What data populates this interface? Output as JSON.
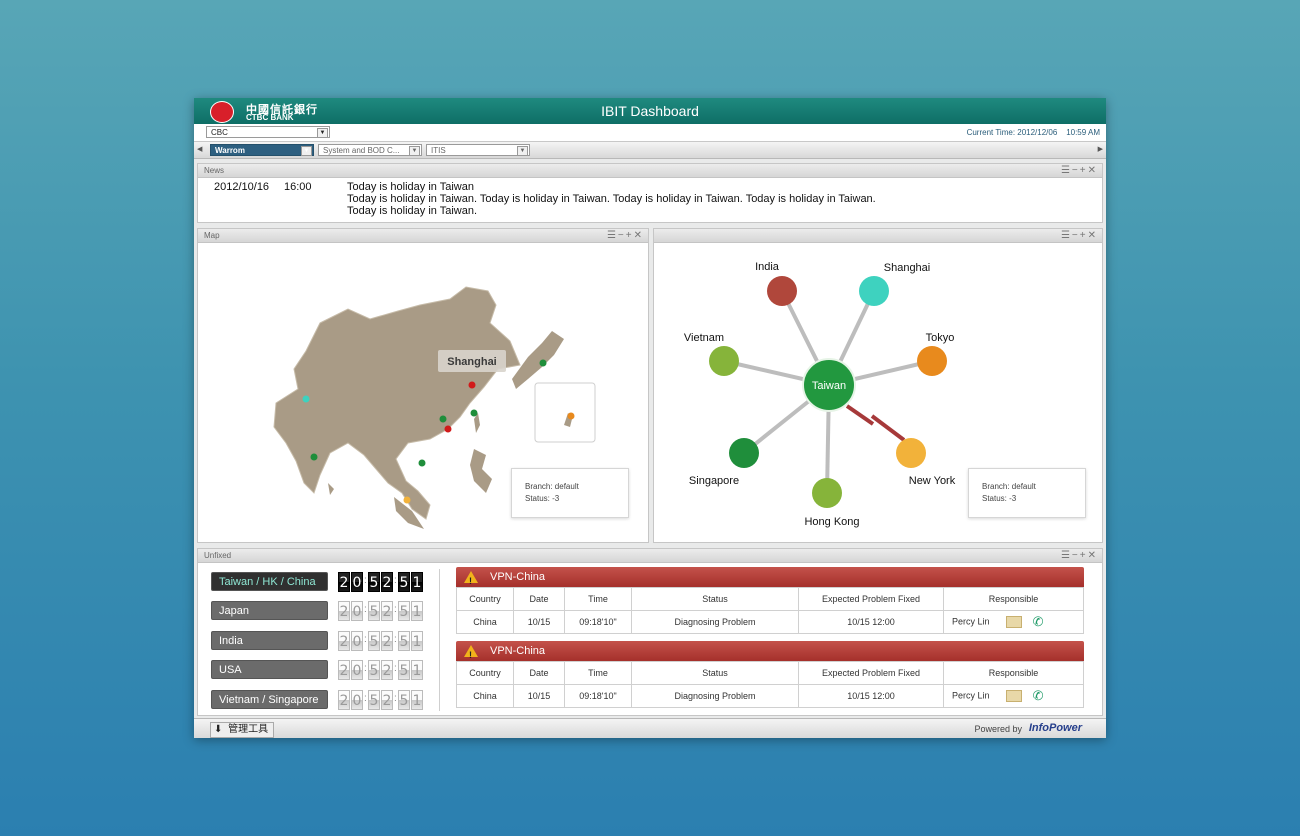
{
  "app": {
    "title": "IBIT Dashboard",
    "logo_cn": "中國信託銀行",
    "logo_en": "CTBC BANK"
  },
  "toolbar": {
    "bank_select": "CBC",
    "current_time_label": "Current Time: 2012/12/06",
    "current_time_value": "10:59 AM",
    "tabs": [
      "Warrom",
      "System and BOD C...",
      "ITIS"
    ]
  },
  "news": {
    "title": "News",
    "date": "2012/10/16",
    "time": "16:00",
    "lines": [
      "Today is holiday in Taiwan",
      "Today is holiday in Taiwan. Today is holiday in Taiwan. Today is holiday in Taiwan. Today is holiday in Taiwan.",
      "Today is holiday in Taiwan."
    ]
  },
  "map": {
    "title": "Map",
    "tooltip": "Shanghai",
    "branch": "Branch: default",
    "status": "Status: -3"
  },
  "network": {
    "center": "Taiwan",
    "nodes": [
      {
        "label": "India",
        "color": "#b0473b"
      },
      {
        "label": "Shanghai",
        "color": "#3ed2bf"
      },
      {
        "label": "Tokyo",
        "color": "#e88a1d"
      },
      {
        "label": "New York",
        "color": "#f2b23a"
      },
      {
        "label": "Hong Kong",
        "color": "#86b43a"
      },
      {
        "label": "Singapore",
        "color": "#1f8e3b"
      },
      {
        "label": "Vietnam",
        "color": "#86b43a"
      }
    ],
    "branch": "Branch: default",
    "status": "Status: -3"
  },
  "unfixed": {
    "title": "Unfixed",
    "clocks": [
      {
        "region": "Taiwan / HK / China",
        "time": [
          "2",
          "0",
          "5",
          "2",
          "5",
          "1"
        ]
      },
      {
        "region": "Japan",
        "time": [
          "2",
          "0",
          "5",
          "2",
          "5",
          "1"
        ]
      },
      {
        "region": "India",
        "time": [
          "2",
          "0",
          "5",
          "2",
          "5",
          "1"
        ]
      },
      {
        "region": "USA",
        "time": [
          "2",
          "0",
          "5",
          "2",
          "5",
          "1"
        ]
      },
      {
        "region": "Vietnam / Singapore",
        "time": [
          "2",
          "0",
          "5",
          "2",
          "5",
          "1"
        ]
      }
    ],
    "headers": [
      "Country",
      "Date",
      "Time",
      "Status",
      "Expected Problem Fixed",
      "Responsible"
    ],
    "incidents": [
      {
        "title": "VPN-China",
        "country": "China",
        "date": "10/15",
        "time": "09:18'10\"",
        "status": "Diagnosing Problem",
        "expected": "10/15  12:00",
        "responsible": "Percy Lin"
      },
      {
        "title": "VPN-China",
        "country": "China",
        "date": "10/15",
        "time": "09:18'10\"",
        "status": "Diagnosing Problem",
        "expected": "10/15  12:00",
        "responsible": "Percy Lin"
      }
    ]
  },
  "footer": {
    "tools": "管理工具",
    "powered": "Powered by",
    "brand": "InfoPower"
  }
}
